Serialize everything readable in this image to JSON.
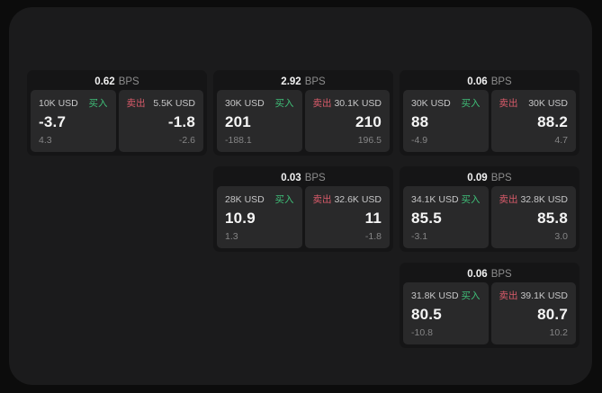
{
  "labels": {
    "bps": "BPS",
    "buy": "买入",
    "sell": "卖出"
  },
  "colors": {
    "buy_green": "#3fbf78",
    "sell_red": "#d95b6a",
    "panel_bg": "#1b1b1c",
    "card_bg": "#151516",
    "subpanel_bg": "#29292a"
  },
  "cards": [
    {
      "bps": "0.62",
      "row": 1,
      "col": 1,
      "buy": {
        "size": "10K USD",
        "value": "-3.7",
        "sub": "4.3"
      },
      "sell": {
        "size": "5.5K USD",
        "value": "-1.8",
        "sub": "-2.6"
      }
    },
    {
      "bps": "2.92",
      "row": 1,
      "col": 2,
      "buy": {
        "size": "30K USD",
        "value": "201",
        "sub": "-188.1"
      },
      "sell": {
        "size": "30.1K USD",
        "value": "210",
        "sub": "196.5"
      }
    },
    {
      "bps": "0.06",
      "row": 1,
      "col": 3,
      "buy": {
        "size": "30K USD",
        "value": "88",
        "sub": "-4.9"
      },
      "sell": {
        "size": "30K USD",
        "value": "88.2",
        "sub": "4.7"
      }
    },
    {
      "bps": "0.03",
      "row": 2,
      "col": 2,
      "buy": {
        "size": "28K USD",
        "value": "10.9",
        "sub": "1.3"
      },
      "sell": {
        "size": "32.6K USD",
        "value": "11",
        "sub": "-1.8"
      }
    },
    {
      "bps": "0.09",
      "row": 2,
      "col": 3,
      "buy": {
        "size": "34.1K USD",
        "value": "85.5",
        "sub": "-3.1"
      },
      "sell": {
        "size": "32.8K USD",
        "value": "85.8",
        "sub": "3.0"
      }
    },
    {
      "bps": "0.06",
      "row": 3,
      "col": 3,
      "buy": {
        "size": "31.8K USD",
        "value": "80.5",
        "sub": "-10.8"
      },
      "sell": {
        "size": "39.1K USD",
        "value": "80.7",
        "sub": "10.2"
      }
    }
  ]
}
